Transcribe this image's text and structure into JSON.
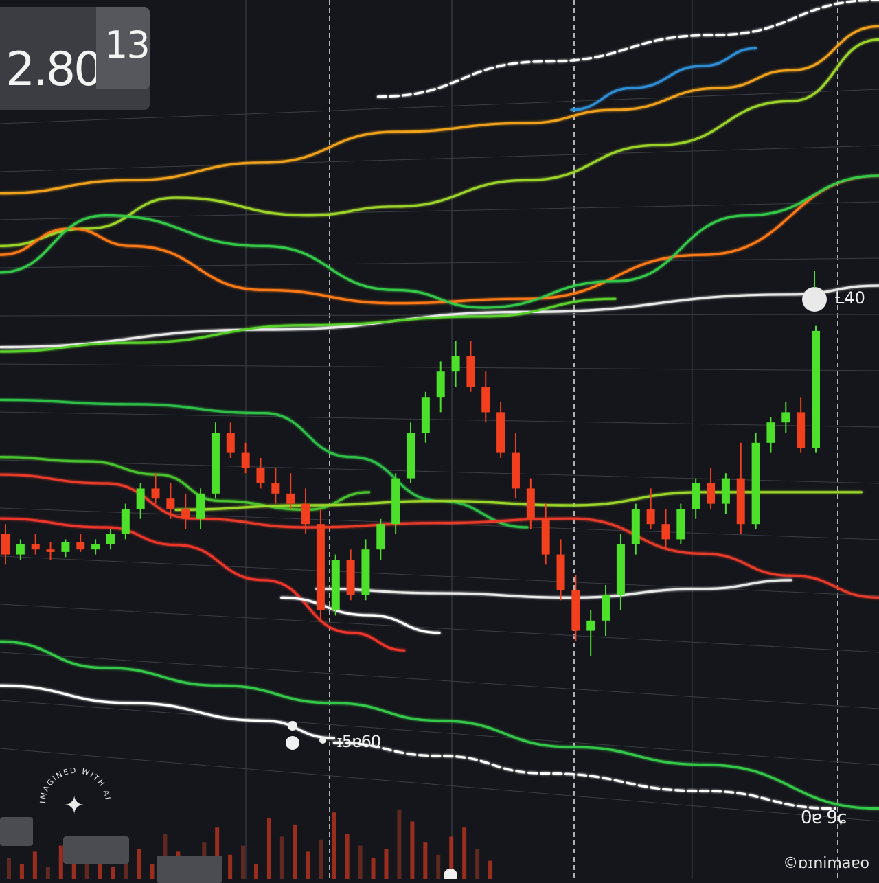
{
  "chart_data": {
    "type": "candlestick",
    "price_badge": {
      "main": "2.80.",
      "sub": "13"
    },
    "level_labels": {
      "upper": "Ƚ40",
      "low_center": "ɪ5ɐ60",
      "bottom_right": "0ɐ 9ɕ"
    },
    "credit": "©ɒɪnimaɐo",
    "watermark": "IMAGINED WITH AI",
    "colors": {
      "up": "#4ce02a",
      "down": "#f2401e",
      "grid": "#3a3d44",
      "background": "#15161b"
    },
    "candles": [
      {
        "o": 60,
        "h": 64,
        "l": 48,
        "c": 52
      },
      {
        "o": 52,
        "h": 58,
        "l": 50,
        "c": 56
      },
      {
        "o": 56,
        "h": 60,
        "l": 52,
        "c": 54
      },
      {
        "o": 54,
        "h": 57,
        "l": 50,
        "c": 53
      },
      {
        "o": 53,
        "h": 58,
        "l": 51,
        "c": 57
      },
      {
        "o": 57,
        "h": 60,
        "l": 53,
        "c": 54
      },
      {
        "o": 54,
        "h": 58,
        "l": 52,
        "c": 56
      },
      {
        "o": 56,
        "h": 62,
        "l": 54,
        "c": 60
      },
      {
        "o": 60,
        "h": 72,
        "l": 58,
        "c": 70
      },
      {
        "o": 70,
        "h": 80,
        "l": 66,
        "c": 78
      },
      {
        "o": 78,
        "h": 84,
        "l": 72,
        "c": 74
      },
      {
        "o": 74,
        "h": 80,
        "l": 66,
        "c": 70
      },
      {
        "o": 70,
        "h": 76,
        "l": 62,
        "c": 66
      },
      {
        "o": 66,
        "h": 78,
        "l": 62,
        "c": 76
      },
      {
        "o": 76,
        "h": 104,
        "l": 74,
        "c": 100
      },
      {
        "o": 100,
        "h": 104,
        "l": 90,
        "c": 92
      },
      {
        "o": 92,
        "h": 96,
        "l": 84,
        "c": 86
      },
      {
        "o": 86,
        "h": 90,
        "l": 78,
        "c": 80
      },
      {
        "o": 80,
        "h": 86,
        "l": 72,
        "c": 76
      },
      {
        "o": 76,
        "h": 84,
        "l": 70,
        "c": 72
      },
      {
        "o": 72,
        "h": 78,
        "l": 60,
        "c": 64
      },
      {
        "o": 64,
        "h": 70,
        "l": 26,
        "c": 30
      },
      {
        "o": 30,
        "h": 52,
        "l": 28,
        "c": 50
      },
      {
        "o": 50,
        "h": 54,
        "l": 34,
        "c": 36
      },
      {
        "o": 36,
        "h": 58,
        "l": 34,
        "c": 54
      },
      {
        "o": 54,
        "h": 66,
        "l": 50,
        "c": 64
      },
      {
        "o": 64,
        "h": 84,
        "l": 60,
        "c": 82
      },
      {
        "o": 82,
        "h": 104,
        "l": 80,
        "c": 100
      },
      {
        "o": 100,
        "h": 116,
        "l": 96,
        "c": 114
      },
      {
        "o": 114,
        "h": 128,
        "l": 108,
        "c": 124
      },
      {
        "o": 124,
        "h": 136,
        "l": 118,
        "c": 130
      },
      {
        "o": 130,
        "h": 136,
        "l": 116,
        "c": 118
      },
      {
        "o": 118,
        "h": 124,
        "l": 104,
        "c": 108
      },
      {
        "o": 108,
        "h": 112,
        "l": 90,
        "c": 92
      },
      {
        "o": 92,
        "h": 100,
        "l": 74,
        "c": 78
      },
      {
        "o": 78,
        "h": 82,
        "l": 62,
        "c": 66
      },
      {
        "o": 66,
        "h": 72,
        "l": 48,
        "c": 52
      },
      {
        "o": 52,
        "h": 58,
        "l": 34,
        "c": 38
      },
      {
        "o": 38,
        "h": 44,
        "l": 18,
        "c": 22
      },
      {
        "o": 22,
        "h": 30,
        "l": 12,
        "c": 26
      },
      {
        "o": 26,
        "h": 40,
        "l": 20,
        "c": 36
      },
      {
        "o": 36,
        "h": 60,
        "l": 30,
        "c": 56
      },
      {
        "o": 56,
        "h": 72,
        "l": 52,
        "c": 70
      },
      {
        "o": 70,
        "h": 78,
        "l": 62,
        "c": 64
      },
      {
        "o": 64,
        "h": 70,
        "l": 54,
        "c": 58
      },
      {
        "o": 58,
        "h": 72,
        "l": 56,
        "c": 70
      },
      {
        "o": 70,
        "h": 82,
        "l": 66,
        "c": 80
      },
      {
        "o": 80,
        "h": 86,
        "l": 70,
        "c": 72
      },
      {
        "o": 72,
        "h": 84,
        "l": 68,
        "c": 82
      },
      {
        "o": 82,
        "h": 96,
        "l": 60,
        "c": 64
      },
      {
        "o": 64,
        "h": 100,
        "l": 62,
        "c": 96
      },
      {
        "o": 96,
        "h": 106,
        "l": 92,
        "c": 104
      },
      {
        "o": 104,
        "h": 112,
        "l": 100,
        "c": 108
      },
      {
        "o": 108,
        "h": 114,
        "l": 92,
        "c": 94
      },
      {
        "o": 94,
        "h": 142,
        "l": 92,
        "c": 140
      }
    ],
    "overlay_lines": [
      {
        "name": "",
        "color": "#ffffff",
        "dash": "12 6",
        "values": [
          [
            0.43,
            0.11
          ],
          [
            0.62,
            0.07
          ],
          [
            0.81,
            0.04
          ],
          [
            1.0,
            0.0
          ]
        ]
      },
      {
        "name": "",
        "color": "#e8e8e8",
        "dash": "",
        "values": [
          [
            0,
            0.395
          ],
          [
            0.3,
            0.375
          ],
          [
            0.6,
            0.355
          ],
          [
            0.9,
            0.335
          ],
          [
            1.0,
            0.325
          ]
        ]
      },
      {
        "name": "",
        "color": "#2d8fd6",
        "dash": "",
        "values": [
          [
            0.65,
            0.125
          ],
          [
            0.72,
            0.1
          ],
          [
            0.8,
            0.075
          ],
          [
            0.86,
            0.055
          ]
        ]
      },
      {
        "name": "",
        "color": "#f0a21a",
        "dash": "",
        "values": [
          [
            0,
            0.22
          ],
          [
            0.15,
            0.205
          ],
          [
            0.3,
            0.185
          ],
          [
            0.45,
            0.15
          ],
          [
            0.6,
            0.14
          ],
          [
            0.7,
            0.125
          ],
          [
            0.82,
            0.1
          ],
          [
            0.9,
            0.08
          ],
          [
            1.0,
            0.03
          ]
        ]
      },
      {
        "name": "",
        "color": "#9dd42a",
        "dash": "",
        "values": [
          [
            0,
            0.28
          ],
          [
            0.1,
            0.26
          ],
          [
            0.2,
            0.225
          ],
          [
            0.35,
            0.245
          ],
          [
            0.45,
            0.235
          ],
          [
            0.6,
            0.205
          ],
          [
            0.75,
            0.165
          ],
          [
            0.9,
            0.115
          ],
          [
            1.0,
            0.045
          ]
        ]
      },
      {
        "name": "",
        "color": "#ff7a12",
        "dash": "",
        "values": [
          [
            0,
            0.29
          ],
          [
            0.08,
            0.26
          ],
          [
            0.15,
            0.28
          ],
          [
            0.3,
            0.33
          ],
          [
            0.45,
            0.345
          ],
          [
            0.6,
            0.34
          ],
          [
            0.8,
            0.29
          ],
          [
            1.0,
            0.2
          ]
        ]
      },
      {
        "name": "",
        "color": "#36c94a",
        "dash": "",
        "values": [
          [
            0,
            0.31
          ],
          [
            0.12,
            0.245
          ],
          [
            0.3,
            0.28
          ],
          [
            0.45,
            0.33
          ],
          [
            0.55,
            0.35
          ],
          [
            0.7,
            0.32
          ],
          [
            0.85,
            0.245
          ],
          [
            1.0,
            0.2
          ]
        ]
      },
      {
        "name": "",
        "color": "#5ad12a",
        "dash": "",
        "values": [
          [
            0,
            0.4
          ],
          [
            0.15,
            0.39
          ],
          [
            0.35,
            0.37
          ],
          [
            0.55,
            0.36
          ],
          [
            0.7,
            0.34
          ]
        ]
      },
      {
        "name": "",
        "color": "#2fbf4a",
        "dash": "",
        "values": [
          [
            0,
            0.455
          ],
          [
            0.15,
            0.46
          ],
          [
            0.3,
            0.47
          ],
          [
            0.4,
            0.52
          ],
          [
            0.5,
            0.57
          ],
          [
            0.6,
            0.6
          ]
        ]
      },
      {
        "name": "",
        "color": "#48c22e",
        "dash": "",
        "values": [
          [
            0,
            0.52
          ],
          [
            0.1,
            0.525
          ],
          [
            0.18,
            0.54
          ],
          [
            0.25,
            0.57
          ],
          [
            0.35,
            0.58
          ],
          [
            0.42,
            0.56
          ]
        ]
      },
      {
        "name": "",
        "color": "#9bd62a",
        "dash": "",
        "values": [
          [
            0.2,
            0.58
          ],
          [
            0.35,
            0.575
          ],
          [
            0.5,
            0.57
          ],
          [
            0.65,
            0.575
          ],
          [
            0.8,
            0.56
          ],
          [
            0.98,
            0.56
          ]
        ]
      },
      {
        "name": "",
        "color": "#e83a2a",
        "dash": "",
        "values": [
          [
            0,
            0.54
          ],
          [
            0.12,
            0.55
          ],
          [
            0.22,
            0.59
          ],
          [
            0.35,
            0.6
          ],
          [
            0.5,
            0.595
          ],
          [
            0.65,
            0.59
          ],
          [
            0.8,
            0.63
          ],
          [
            0.9,
            0.655
          ],
          [
            1.0,
            0.68
          ]
        ]
      },
      {
        "name": "",
        "color": "#f0352a",
        "dash": "",
        "values": [
          [
            0,
            0.59
          ],
          [
            0.12,
            0.6
          ],
          [
            0.2,
            0.62
          ],
          [
            0.3,
            0.66
          ],
          [
            0.4,
            0.72
          ],
          [
            0.46,
            0.74
          ]
        ]
      },
      {
        "name": "",
        "color": "#ffffff",
        "dash": "",
        "values": [
          [
            0.32,
            0.68
          ],
          [
            0.42,
            0.7
          ],
          [
            0.5,
            0.72
          ]
        ]
      },
      {
        "name": "",
        "color": "#e8e8e8",
        "dash": "",
        "values": [
          [
            0.36,
            0.67
          ],
          [
            0.5,
            0.675
          ],
          [
            0.65,
            0.68
          ],
          [
            0.8,
            0.67
          ],
          [
            0.9,
            0.66
          ]
        ]
      },
      {
        "name": "",
        "color": "#36c94a",
        "dash": "",
        "values": [
          [
            0,
            0.73
          ],
          [
            0.12,
            0.76
          ],
          [
            0.25,
            0.78
          ],
          [
            0.38,
            0.8
          ],
          [
            0.5,
            0.82
          ],
          [
            0.65,
            0.85
          ],
          [
            0.8,
            0.87
          ],
          [
            1.0,
            0.92
          ]
        ]
      },
      {
        "name": "",
        "color": "#ffffff",
        "dash": "12 6",
        "values": [
          [
            0.38,
            0.845
          ],
          [
            0.5,
            0.86
          ],
          [
            0.62,
            0.88
          ],
          [
            0.8,
            0.9
          ],
          [
            0.95,
            0.92
          ]
        ]
      },
      {
        "name": "",
        "color": "#ffffff",
        "dash": "",
        "values": [
          [
            0,
            0.78
          ],
          [
            0.15,
            0.8
          ],
          [
            0.3,
            0.82
          ],
          [
            0.38,
            0.84
          ]
        ]
      }
    ],
    "volume": [
      14,
      10,
      18,
      8,
      22,
      12,
      16,
      26,
      8,
      14,
      20,
      10,
      30,
      18,
      12,
      24,
      34,
      16,
      22,
      10,
      40,
      28,
      36,
      18,
      26,
      44,
      30,
      22,
      14,
      20,
      46,
      38,
      24,
      16,
      28,
      34,
      20,
      12
    ],
    "grid": true
  }
}
